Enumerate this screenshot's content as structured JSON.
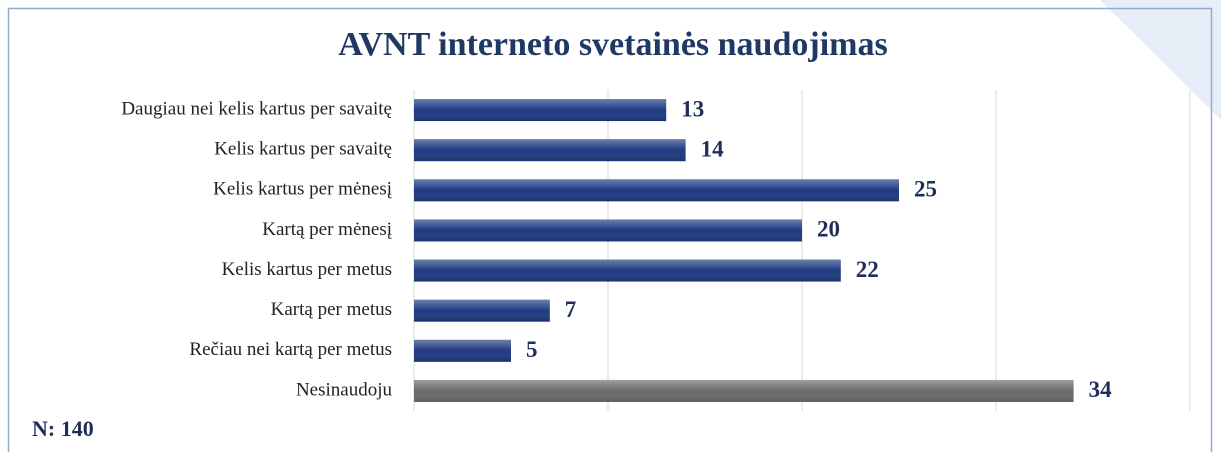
{
  "chart_data": {
    "type": "barh",
    "title": "AVNT interneto svetainės naudojimas",
    "categories": [
      "Daugiau nei kelis kartus per savaitę",
      "Kelis kartus per savaitę",
      "Kelis kartus per mėnesį",
      "Kartą per mėnesį",
      "Kelis kartus per metus",
      "Kartą per metus",
      "Rečiau nei kartą per metus",
      "Nesinaudoju"
    ],
    "values": [
      13,
      14,
      25,
      20,
      22,
      7,
      5,
      34
    ],
    "colors": [
      "#1f3a80",
      "#1f3a80",
      "#1f3a80",
      "#1f3a80",
      "#1f3a80",
      "#1f3a80",
      "#1f3a80",
      "#6b6b6b"
    ],
    "xlim": [
      0,
      40
    ],
    "xticks": [
      0,
      10,
      20,
      30,
      40
    ],
    "grid": true,
    "annotation": "N: 140"
  }
}
